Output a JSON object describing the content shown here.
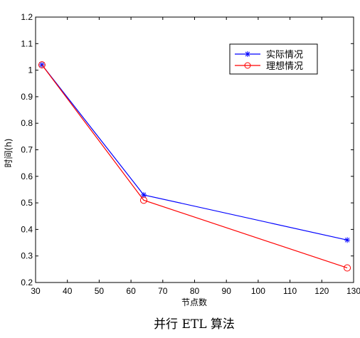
{
  "chart_data": {
    "type": "line",
    "title": "",
    "caption": "并行 ETL 算法",
    "xlabel": "节点数",
    "ylabel": "时间(h)",
    "xlim": [
      30,
      130
    ],
    "ylim": [
      0.2,
      1.2
    ],
    "xticks": [
      30,
      40,
      50,
      60,
      70,
      80,
      90,
      100,
      110,
      120,
      130
    ],
    "yticks": [
      0.2,
      0.3,
      0.4,
      0.5,
      0.6,
      0.7,
      0.8,
      0.9,
      1,
      1.1,
      1.2
    ],
    "grid": false,
    "legend_position": "top-right",
    "x": [
      32,
      64,
      128
    ],
    "series": [
      {
        "name": "实际情况",
        "values": [
          1.02,
          0.53,
          0.36
        ],
        "color": "#0000ff",
        "marker": "star"
      },
      {
        "name": "理想情况",
        "values": [
          1.02,
          0.51,
          0.255
        ],
        "color": "#ff0000",
        "marker": "circle"
      }
    ]
  }
}
